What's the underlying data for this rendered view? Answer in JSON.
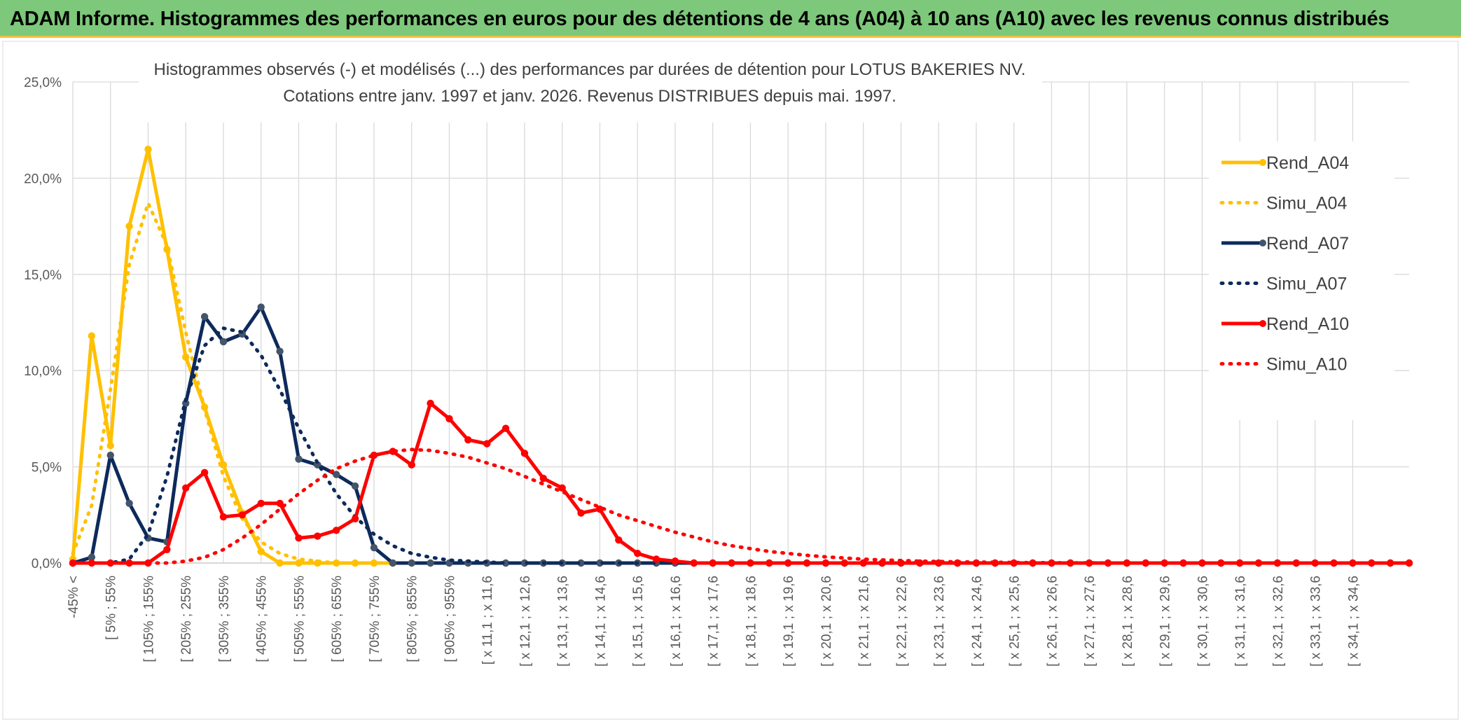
{
  "header": {
    "title": "ADAM Informe. Histogrammes des performances en euros pour des détentions de 4 ans (A04) à 10 ans (A10) avec les revenus connus distribués"
  },
  "chart_data": {
    "type": "line",
    "title_line1": "Histogrammes observés (-) et modélisés (...) des performances par durées de détention pour LOTUS BAKERIES NV.",
    "title_line2": "Cotations entre janv. 1997 et janv. 2026. Revenus DISTRIBUES depuis mai. 1997.",
    "ylim": [
      0,
      25
    ],
    "yticks": [
      "0,0%",
      "5,0%",
      "10,0%",
      "15,0%",
      "20,0%",
      "25,0%"
    ],
    "ytick_values": [
      0,
      5,
      10,
      15,
      20,
      25
    ],
    "grid": true,
    "legend_position": "right",
    "category_labels_shown": [
      "-45% <",
      "[ 5% ; 55%",
      "[ 105% ; 155%",
      "[ 205% ; 255%",
      "[ 305% ; 355%",
      "[ 405% ; 455%",
      "[ 505% ; 555%",
      "[ 605% ; 655%",
      "[ 705% ; 755%",
      "[ 805% ; 855%",
      "[ 905% ; 955%",
      "[ x 11,1 ; x 11,6",
      "[ x 12,1 ; x 12,6",
      "[ x 13,1 ; x 13,6",
      "[ x 14,1 ; x 14,6",
      "[ x 15,1 ; x 15,6",
      "[ x 16,1 ; x 16,6",
      "[ x 17,1 ; x 17,6",
      "[ x 18,1 ; x 18,6",
      "[ x 19,1 ; x 19,6",
      "[ x 20,1 ; x 20,6",
      "[ x 21,1 ; x 21,6",
      "[ x 22,1 ; x 22,6",
      "[ x 23,1 ; x 23,6",
      "[ x 24,1 ; x 24,6",
      "[ x 25,1 ; x 25,6",
      "[ x 26,1 ; x 26,6",
      "[ x 27,1 ; x 27,6",
      "[ x 28,1 ; x 28,6",
      "[ x 29,1 ; x 29,6",
      "[ x 30,1 ; x 30,6",
      "[ x 31,1 ; x 31,6",
      "[ x 32,1 ; x 32,6",
      "[ x 33,1 ; x 33,6",
      "[ x 34,1 ; x 34,6"
    ],
    "n_points": 72,
    "series": [
      {
        "name": "Rend_A04",
        "color": "#ffc000",
        "style": "solid",
        "values": [
          0.2,
          11.8,
          6.1,
          17.5,
          21.5,
          16.3,
          10.7,
          8.1,
          5.1,
          2.6,
          0.6,
          0,
          0,
          0,
          0,
          0,
          0,
          0,
          0,
          0,
          0,
          0,
          0,
          0,
          0,
          0,
          0,
          0,
          0,
          0,
          0,
          0,
          0,
          0,
          0,
          0,
          0,
          0,
          0,
          0,
          0,
          0,
          0,
          0,
          0,
          0,
          0,
          0,
          0,
          0,
          0,
          0,
          0,
          0,
          0,
          0,
          0,
          0,
          0,
          0,
          0,
          0,
          0,
          0,
          0,
          0,
          0,
          0,
          0,
          0,
          0,
          0
        ]
      },
      {
        "name": "Simu_A04",
        "color": "#ffc000",
        "style": "dotted",
        "values": [
          0.5,
          3.0,
          9.0,
          15.5,
          18.7,
          16.5,
          12.0,
          8.0,
          4.5,
          2.3,
          1.1,
          0.5,
          0.2,
          0.1,
          0,
          0,
          0,
          0,
          0,
          0,
          0,
          0,
          0,
          0,
          0,
          0,
          0,
          0,
          0,
          0,
          0,
          0,
          0,
          0,
          0,
          0,
          0,
          0,
          0,
          0,
          0,
          0,
          0,
          0,
          0,
          0,
          0,
          0,
          0,
          0,
          0,
          0,
          0,
          0,
          0,
          0,
          0,
          0,
          0,
          0,
          0,
          0,
          0,
          0,
          0,
          0,
          0,
          0,
          0,
          0,
          0,
          0
        ]
      },
      {
        "name": "Rend_A07",
        "color": "#0d2a5c",
        "style": "solid",
        "values": [
          0,
          0.3,
          5.6,
          3.1,
          1.3,
          1.1,
          8.3,
          12.8,
          11.5,
          11.9,
          13.3,
          11.0,
          5.4,
          5.1,
          4.6,
          4.0,
          0.8,
          0,
          0,
          0,
          0,
          0,
          0,
          0,
          0,
          0,
          0,
          0,
          0,
          0,
          0,
          0,
          0,
          0,
          0,
          0,
          0,
          0,
          0,
          0,
          0,
          0,
          0,
          0,
          0,
          0,
          0,
          0,
          0,
          0,
          0,
          0,
          0,
          0,
          0,
          0,
          0,
          0,
          0,
          0,
          0,
          0,
          0,
          0,
          0,
          0,
          0,
          0,
          0,
          0,
          0,
          0
        ]
      },
      {
        "name": "Simu_A07",
        "color": "#0d2a5c",
        "style": "dotted",
        "values": [
          0,
          0,
          0,
          0.2,
          1.5,
          4.5,
          8.5,
          11.3,
          12.2,
          12.0,
          10.8,
          9.0,
          7.0,
          5.2,
          3.6,
          2.4,
          1.5,
          0.9,
          0.5,
          0.3,
          0.15,
          0.1,
          0.05,
          0,
          0,
          0,
          0,
          0,
          0,
          0,
          0,
          0,
          0,
          0,
          0,
          0,
          0,
          0,
          0,
          0,
          0,
          0,
          0,
          0,
          0,
          0,
          0,
          0,
          0,
          0,
          0,
          0,
          0,
          0,
          0,
          0,
          0,
          0,
          0,
          0,
          0,
          0,
          0,
          0,
          0,
          0,
          0,
          0,
          0,
          0,
          0,
          0
        ]
      },
      {
        "name": "Rend_A10",
        "color": "#ff0000",
        "style": "solid",
        "values": [
          0,
          0,
          0,
          0,
          0,
          0.7,
          3.9,
          4.7,
          2.4,
          2.5,
          3.1,
          3.1,
          1.3,
          1.4,
          1.7,
          2.3,
          5.6,
          5.8,
          5.1,
          8.3,
          7.5,
          6.4,
          6.2,
          7.0,
          5.7,
          4.4,
          3.9,
          2.6,
          2.8,
          1.2,
          0.5,
          0.2,
          0.1,
          0,
          0,
          0,
          0,
          0,
          0,
          0,
          0,
          0,
          0,
          0,
          0,
          0,
          0,
          0,
          0,
          0,
          0,
          0,
          0,
          0,
          0,
          0,
          0,
          0,
          0,
          0,
          0,
          0,
          0,
          0,
          0,
          0,
          0,
          0,
          0,
          0,
          0,
          0
        ]
      },
      {
        "name": "Simu_A10",
        "color": "#ff0000",
        "style": "dotted",
        "values": [
          0,
          0,
          0,
          0,
          0,
          0,
          0.1,
          0.3,
          0.7,
          1.3,
          2.0,
          2.8,
          3.6,
          4.3,
          4.9,
          5.3,
          5.6,
          5.8,
          5.9,
          5.85,
          5.7,
          5.5,
          5.2,
          4.9,
          4.5,
          4.1,
          3.7,
          3.3,
          2.9,
          2.5,
          2.2,
          1.9,
          1.6,
          1.35,
          1.1,
          0.9,
          0.75,
          0.6,
          0.5,
          0.4,
          0.32,
          0.26,
          0.2,
          0.16,
          0.13,
          0.1,
          0.08,
          0.06,
          0.05,
          0.04,
          0.03,
          0.02,
          0.02,
          0.01,
          0.01,
          0,
          0,
          0,
          0,
          0,
          0,
          0,
          0,
          0,
          0,
          0,
          0,
          0,
          0,
          0,
          0,
          0
        ]
      }
    ]
  }
}
